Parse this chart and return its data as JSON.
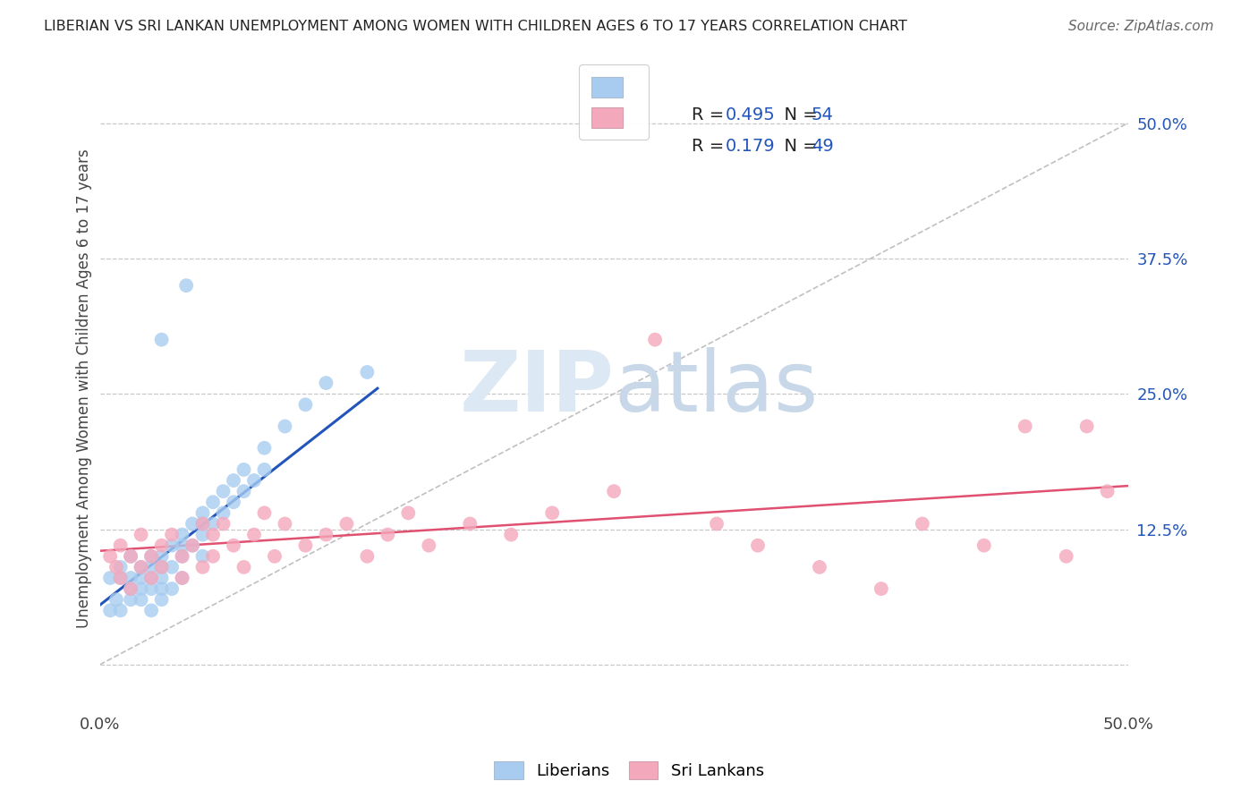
{
  "title": "LIBERIAN VS SRI LANKAN UNEMPLOYMENT AMONG WOMEN WITH CHILDREN AGES 6 TO 17 YEARS CORRELATION CHART",
  "source": "Source: ZipAtlas.com",
  "ylabel": "Unemployment Among Women with Children Ages 6 to 17 years",
  "xlim": [
    0.0,
    0.5
  ],
  "ylim": [
    -0.04,
    0.55
  ],
  "liberian_R": 0.495,
  "liberian_N": 54,
  "srilankan_R": 0.179,
  "srilankan_N": 49,
  "liberian_color": "#a8ccf0",
  "srilankan_color": "#f4a8bc",
  "liberian_line_color": "#2255bb",
  "srilankan_line_color": "#e05070",
  "background_color": "#ffffff",
  "grid_color": "#c8c8c8",
  "diag_color": "#c0c0c0",
  "watermark_color": "#dde8f5",
  "liberian_x": [
    0.005,
    0.005,
    0.008,
    0.01,
    0.01,
    0.01,
    0.015,
    0.015,
    0.015,
    0.015,
    0.02,
    0.02,
    0.02,
    0.02,
    0.025,
    0.025,
    0.025,
    0.025,
    0.025,
    0.03,
    0.03,
    0.03,
    0.03,
    0.03,
    0.035,
    0.035,
    0.035,
    0.04,
    0.04,
    0.04,
    0.04,
    0.042,
    0.045,
    0.045,
    0.05,
    0.05,
    0.05,
    0.05,
    0.055,
    0.055,
    0.06,
    0.06,
    0.065,
    0.065,
    0.07,
    0.07,
    0.075,
    0.08,
    0.08,
    0.09,
    0.1,
    0.11,
    0.13,
    0.03
  ],
  "liberian_y": [
    0.08,
    0.05,
    0.06,
    0.08,
    0.09,
    0.05,
    0.07,
    0.08,
    0.1,
    0.06,
    0.09,
    0.07,
    0.08,
    0.06,
    0.1,
    0.08,
    0.09,
    0.07,
    0.05,
    0.1,
    0.09,
    0.08,
    0.07,
    0.06,
    0.11,
    0.09,
    0.07,
    0.12,
    0.11,
    0.1,
    0.08,
    0.35,
    0.13,
    0.11,
    0.14,
    0.13,
    0.12,
    0.1,
    0.15,
    0.13,
    0.16,
    0.14,
    0.17,
    0.15,
    0.18,
    0.16,
    0.17,
    0.2,
    0.18,
    0.22,
    0.24,
    0.26,
    0.27,
    0.3
  ],
  "srilankan_x": [
    0.005,
    0.008,
    0.01,
    0.01,
    0.015,
    0.015,
    0.02,
    0.02,
    0.025,
    0.025,
    0.03,
    0.03,
    0.035,
    0.04,
    0.04,
    0.045,
    0.05,
    0.05,
    0.055,
    0.055,
    0.06,
    0.065,
    0.07,
    0.075,
    0.08,
    0.085,
    0.09,
    0.1,
    0.11,
    0.12,
    0.13,
    0.14,
    0.15,
    0.16,
    0.18,
    0.2,
    0.22,
    0.25,
    0.27,
    0.3,
    0.32,
    0.35,
    0.38,
    0.4,
    0.43,
    0.45,
    0.47,
    0.48,
    0.49
  ],
  "srilankan_y": [
    0.1,
    0.09,
    0.11,
    0.08,
    0.1,
    0.07,
    0.09,
    0.12,
    0.1,
    0.08,
    0.11,
    0.09,
    0.12,
    0.1,
    0.08,
    0.11,
    0.13,
    0.09,
    0.12,
    0.1,
    0.13,
    0.11,
    0.09,
    0.12,
    0.14,
    0.1,
    0.13,
    0.11,
    0.12,
    0.13,
    0.1,
    0.12,
    0.14,
    0.11,
    0.13,
    0.12,
    0.14,
    0.16,
    0.3,
    0.13,
    0.11,
    0.09,
    0.07,
    0.13,
    0.11,
    0.22,
    0.1,
    0.22,
    0.16
  ],
  "lib_line_x": [
    0.0,
    0.135
  ],
  "lib_line_y": [
    0.055,
    0.255
  ],
  "sri_line_x": [
    0.0,
    0.5
  ],
  "sri_line_y": [
    0.105,
    0.165
  ]
}
